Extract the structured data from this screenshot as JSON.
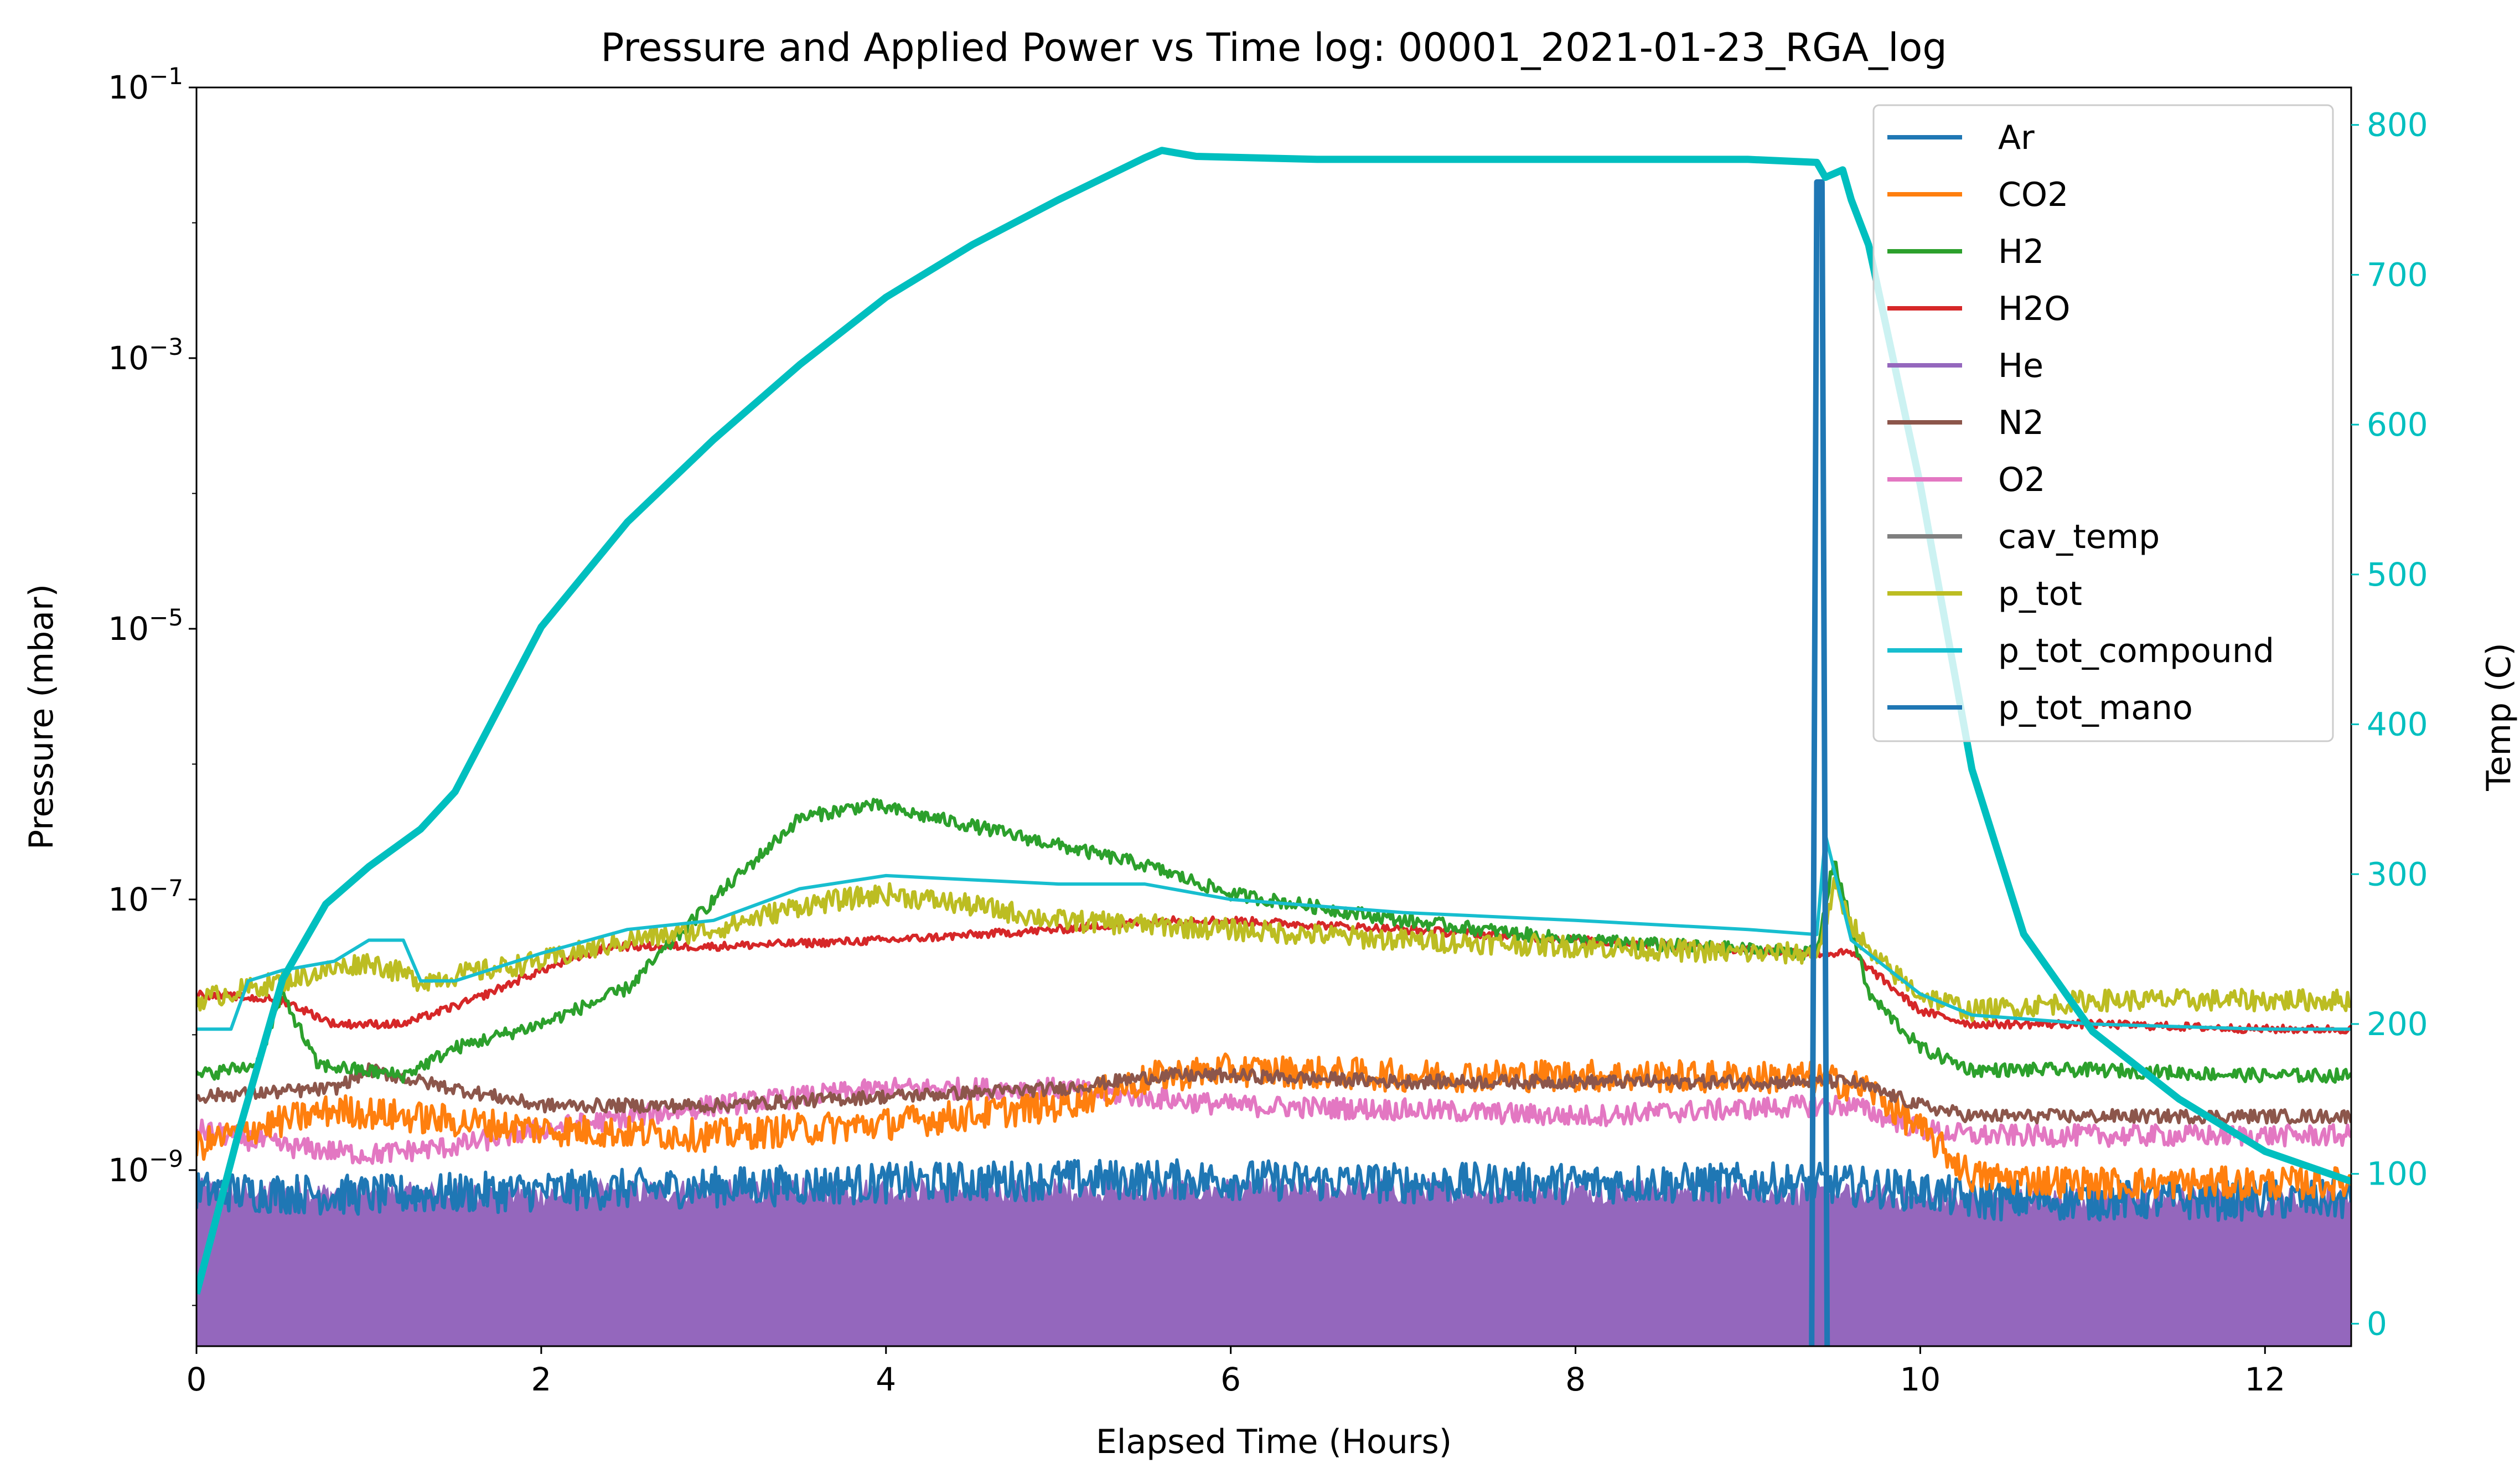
{
  "chart_data": {
    "type": "line",
    "title": "Pressure and Applied Power vs Time log: 00001_2021-01-23_RGA_log",
    "xlabel": "Elapsed Time (Hours)",
    "ylabel": "Pressure (mbar)",
    "y2label": "Temp (C)",
    "xlim": [
      0,
      12.5
    ],
    "ylim": [
      5e-11,
      0.1
    ],
    "yscale": "log",
    "y2lim": [
      -15,
      825
    ],
    "x_ticks": [
      "0",
      "2",
      "4",
      "6",
      "8",
      "10",
      "12"
    ],
    "y_ticks": [
      {
        "base": "10",
        "exp": "−1"
      },
      {
        "base": "10",
        "exp": "−3"
      },
      {
        "base": "10",
        "exp": "−5"
      },
      {
        "base": "10",
        "exp": "−7"
      },
      {
        "base": "10",
        "exp": "−9"
      }
    ],
    "y2_ticks": [
      "0",
      "100",
      "200",
      "300",
      "400",
      "500",
      "600",
      "700",
      "800"
    ],
    "legend_position": "top-right",
    "colors": {
      "Ar": "#1f77b4",
      "CO2": "#ff7f0e",
      "H2": "#2ca02c",
      "H2O": "#d62728",
      "He": "#9467bd",
      "N2": "#8c564b",
      "O2": "#e377c2",
      "cav_temp": "#7f7f7f",
      "p_tot": "#bcbd22",
      "p_tot_compound": "#17becf",
      "p_tot_mano": "#1f77b4",
      "temp": "#00bfbf"
    },
    "series": [
      {
        "name": "Ar",
        "axis": "left",
        "noise": 0.15,
        "x": [
          0,
          1,
          2,
          3,
          4,
          5,
          6,
          7,
          8,
          9,
          9.4,
          10,
          10.3,
          11,
          12,
          12.5
        ],
        "y": [
          7e-10,
          6.5e-10,
          7e-10,
          7.5e-10,
          8e-10,
          8.5e-10,
          8.5e-10,
          8e-10,
          8e-10,
          8e-10,
          8e-10,
          7e-10,
          6e-10,
          6e-10,
          6e-10,
          6e-10
        ]
      },
      {
        "name": "CO2",
        "axis": "left",
        "noise": 0.12,
        "x": [
          0,
          0.3,
          0.8,
          1.2,
          2,
          3,
          4,
          5,
          5.6,
          6,
          7,
          8,
          9.4,
          9.7,
          10,
          10.3,
          11,
          12,
          12.5
        ],
        "y": [
          1.5e-09,
          2e-09,
          2.8e-09,
          2.5e-09,
          2e-09,
          1.8e-09,
          2.2e-09,
          3e-09,
          5e-09,
          5.5e-09,
          5e-09,
          5e-09,
          4.8e-09,
          4e-09,
          2e-09,
          9e-10,
          8e-10,
          8e-10,
          8e-10
        ]
      },
      {
        "name": "H2",
        "axis": "left",
        "noise": 0.05,
        "x": [
          0,
          0.35,
          0.5,
          0.7,
          1.2,
          1.5,
          2,
          2.5,
          3,
          3.5,
          3.9,
          4.5,
          5.5,
          6,
          7,
          8,
          9.4,
          9.5,
          9.7,
          10,
          10.3,
          11,
          12,
          12.5
        ],
        "y": [
          5e-09,
          6e-09,
          2e-08,
          6e-09,
          5e-09,
          8e-09,
          1.2e-08,
          2.2e-08,
          1e-07,
          4e-07,
          5e-07,
          3.5e-07,
          1.8e-07,
          1.1e-07,
          7e-08,
          5e-08,
          4e-08,
          2e-07,
          2e-08,
          8e-09,
          5.5e-09,
          5.5e-09,
          5e-09,
          5e-09
        ]
      },
      {
        "name": "H2O",
        "axis": "left",
        "noise": 0.03,
        "x": [
          0,
          0.5,
          0.8,
          1.2,
          1.6,
          2,
          2.4,
          3,
          4,
          5,
          5.6,
          6,
          7,
          8,
          9.4,
          9.6,
          10,
          10.3,
          11,
          12,
          12.5
        ],
        "y": [
          2e-08,
          1.8e-08,
          1.2e-08,
          1.2e-08,
          1.8e-08,
          3e-08,
          4.5e-08,
          4.5e-08,
          5e-08,
          6e-08,
          7e-08,
          7e-08,
          6e-08,
          5e-08,
          4e-08,
          4e-08,
          1.5e-08,
          1.2e-08,
          1.2e-08,
          1.1e-08,
          1.1e-08
        ]
      },
      {
        "name": "He",
        "axis": "left",
        "noise": 0.1,
        "fill": true,
        "x": [
          0,
          1,
          2,
          3,
          4,
          5,
          6,
          7,
          8,
          9,
          10,
          11,
          12,
          12.5
        ],
        "y": [
          7e-10,
          6.5e-10,
          6.5e-10,
          7e-10,
          7e-10,
          7e-10,
          7e-10,
          7e-10,
          7e-10,
          7e-10,
          6e-10,
          6e-10,
          6e-10,
          6e-10
        ]
      },
      {
        "name": "N2",
        "axis": "left",
        "noise": 0.05,
        "x": [
          0,
          0.8,
          1.0,
          1.3,
          2,
          3,
          4,
          5,
          5.6,
          6,
          7,
          8,
          9.4,
          9.6,
          10,
          10.3,
          11,
          12,
          12.5
        ],
        "y": [
          3.5e-09,
          4e-09,
          5.5e-09,
          4.5e-09,
          3e-09,
          3e-09,
          3.5e-09,
          4e-09,
          5e-09,
          5e-09,
          4.5e-09,
          4.5e-09,
          4.5e-09,
          4.5e-09,
          3e-09,
          2.5e-09,
          2.5e-09,
          2.5e-09,
          2.5e-09
        ]
      },
      {
        "name": "O2",
        "axis": "left",
        "noise": 0.08,
        "x": [
          0,
          0.5,
          1,
          1.5,
          2,
          3,
          4,
          5,
          6,
          7,
          8,
          9.4,
          9.6,
          10,
          10.3,
          11,
          12,
          12.5
        ],
        "y": [
          2e-09,
          1.5e-09,
          1.3e-09,
          1.5e-09,
          2e-09,
          3e-09,
          4e-09,
          4e-09,
          3e-09,
          2.8e-09,
          2.5e-09,
          3e-09,
          3e-09,
          2e-09,
          1.8e-09,
          1.8e-09,
          1.8e-09,
          1.8e-09
        ]
      },
      {
        "name": "cav_temp",
        "axis": "right",
        "x": [],
        "y": []
      },
      {
        "name": "p_tot",
        "axis": "left",
        "noise": 0.08,
        "x": [
          0,
          0.5,
          1.0,
          1.3,
          2,
          2.5,
          3,
          3.5,
          4,
          4.5,
          5,
          6,
          7,
          8,
          9,
          9.4,
          9.5,
          9.7,
          10,
          10.3,
          11,
          12,
          12.5
        ],
        "y": [
          1.8e-08,
          2.5e-08,
          3.5e-08,
          2.5e-08,
          3.5e-08,
          5e-08,
          6e-08,
          9e-08,
          1.1e-07,
          9e-08,
          7e-08,
          6e-08,
          5e-08,
          4.5e-08,
          4e-08,
          4e-08,
          1.2e-07,
          4e-08,
          2e-08,
          1.5e-08,
          1.8e-08,
          1.8e-08,
          1.8e-08
        ]
      },
      {
        "name": "p_tot_compound",
        "axis": "left",
        "noise": 0,
        "x": [
          0,
          0.2,
          0.3,
          0.5,
          0.8,
          1.0,
          1.2,
          1.3,
          1.5,
          2,
          2.5,
          3,
          3.5,
          4,
          5,
          5.5,
          6,
          7,
          8,
          9,
          9.4,
          9.45,
          9.6,
          10,
          10.3,
          11,
          12,
          12.5
        ],
        "y": [
          1.1e-08,
          1.1e-08,
          2.5e-08,
          3e-08,
          3.5e-08,
          5e-08,
          5e-08,
          2.5e-08,
          2.5e-08,
          4e-08,
          6e-08,
          7e-08,
          1.2e-07,
          1.5e-07,
          1.3e-07,
          1.3e-07,
          1e-07,
          8e-08,
          7e-08,
          6e-08,
          5.5e-08,
          3e-07,
          5e-08,
          2e-08,
          1.4e-08,
          1.2e-08,
          1.1e-08,
          1.1e-08
        ]
      },
      {
        "name": "p_tot_mano",
        "axis": "left",
        "noise": 0,
        "x": [
          9.37,
          9.4,
          9.43,
          9.46
        ],
        "y": [
          5e-11,
          0.02,
          0.02,
          5e-11
        ]
      },
      {
        "name": "Temp",
        "axis": "right",
        "legend": false,
        "noise": 0,
        "x": [
          0,
          0.25,
          0.5,
          0.75,
          1.0,
          1.3,
          1.5,
          2,
          2.5,
          3,
          3.5,
          4,
          4.5,
          5,
          5.5,
          5.6,
          5.8,
          6.5,
          7,
          8,
          9,
          9.4,
          9.45,
          9.55,
          9.6,
          9.7,
          10,
          10.3,
          10.6,
          11,
          11.5,
          12,
          12.5
        ],
        "y": [
          20,
          130,
          230,
          280,
          305,
          330,
          355,
          465,
          535,
          590,
          640,
          685,
          720,
          750,
          778,
          783,
          779,
          777,
          777,
          777,
          777,
          775,
          765,
          770,
          750,
          720,
          560,
          370,
          260,
          195,
          150,
          115,
          95
        ]
      }
    ]
  }
}
